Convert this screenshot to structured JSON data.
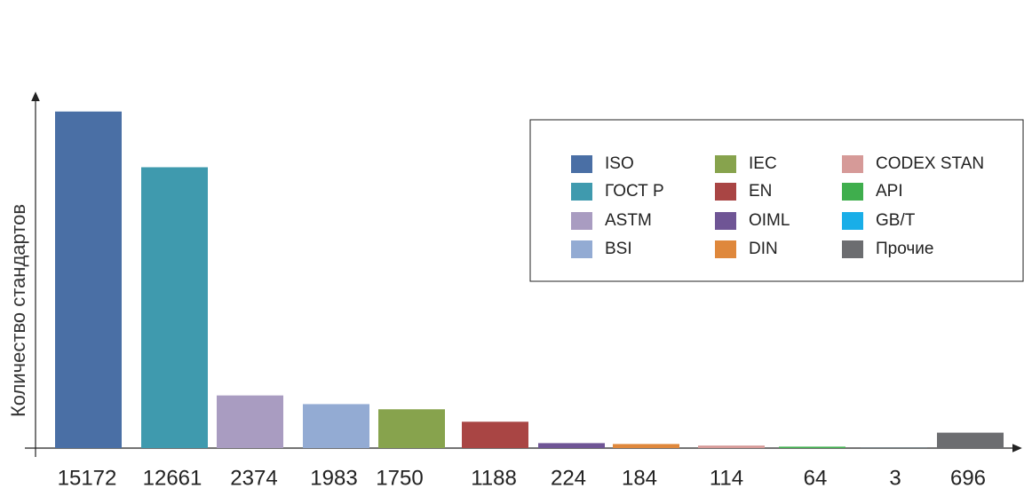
{
  "chart_data": {
    "type": "bar",
    "y_label": "Количество стандартов",
    "categories": [
      "ISO",
      "ГОСТ Р",
      "ASTM",
      "BSI",
      "IEC",
      "EN",
      "OIML",
      "DIN",
      "CODEX STAN",
      "API",
      "GB/T",
      "Прочие"
    ],
    "values": [
      15172,
      12661,
      2374,
      1983,
      1750,
      1188,
      224,
      184,
      114,
      64,
      3,
      696
    ],
    "colors": [
      "#4a6fa5",
      "#3f9aae",
      "#a99cc1",
      "#93abd3",
      "#87a34d",
      "#a94544",
      "#6f5595",
      "#df883c",
      "#d69a98",
      "#3fae4d",
      "#19aee8",
      "#6c6d70"
    ],
    "ylim": [
      0,
      16000
    ],
    "legend": "top-right"
  }
}
